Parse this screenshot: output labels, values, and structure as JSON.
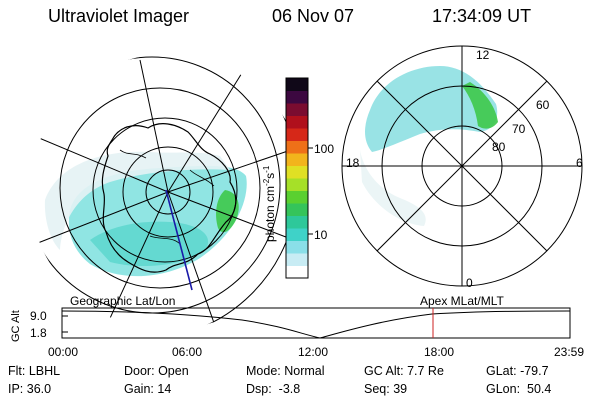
{
  "header": {
    "instrument": "Ultraviolet Imager",
    "date": "06 Nov 07",
    "time": "17:34:09 UT"
  },
  "left_panel": {
    "caption": "Geographic Lat/Lon",
    "projection": "geographic",
    "track_color": "#1a1aa8"
  },
  "right_panel": {
    "caption": "Apex MLat/MLT",
    "lat_labels": [
      "60",
      "70",
      "80"
    ],
    "mlt_labels": {
      "top": "12",
      "left": "18",
      "right": "6",
      "bottom": "0"
    }
  },
  "colorbar": {
    "unit_main": "photon cm",
    "unit_exp1": "-2",
    "unit_mid": "s",
    "unit_exp2": "-1",
    "tick_labels": [
      "100",
      "10"
    ],
    "colors": [
      "#ffffff",
      "#c8ecf4",
      "#8adfe8",
      "#3fd2c8",
      "#2ec89a",
      "#35c45a",
      "#5ad030",
      "#a6e028",
      "#e0e024",
      "#f2b41c",
      "#ee7018",
      "#d62818",
      "#b0101c",
      "#7a0c30",
      "#3c0840",
      "#100818"
    ]
  },
  "altitude_plot": {
    "ylabel": "GC Alt",
    "y_ticks": [
      "9.0",
      "1.8"
    ],
    "x_ticks": [
      "00:00",
      "06:00",
      "12:00",
      "18:00",
      "23:59"
    ],
    "current_marker_color": "#cc2222"
  },
  "status": {
    "flt_label": "Flt:",
    "flt_value": "LBHL",
    "door_label": "Door:",
    "door_value": "Open",
    "mode_label": "Mode:",
    "mode_value": "Normal",
    "gcalt_label": "GC Alt:",
    "gcalt_value": "7.7 Re",
    "glat_label": "GLat:",
    "glat_value": "-79.7",
    "ip_label": "IP:",
    "ip_value": "36.0",
    "gain_label": "Gain:",
    "gain_value": "14",
    "dsp_label": "Dsp:",
    "dsp_value": "-3.8",
    "seq_label": "Seq:",
    "seq_value": "39",
    "glon_label": "GLon:",
    "glon_value": "50.4"
  }
}
